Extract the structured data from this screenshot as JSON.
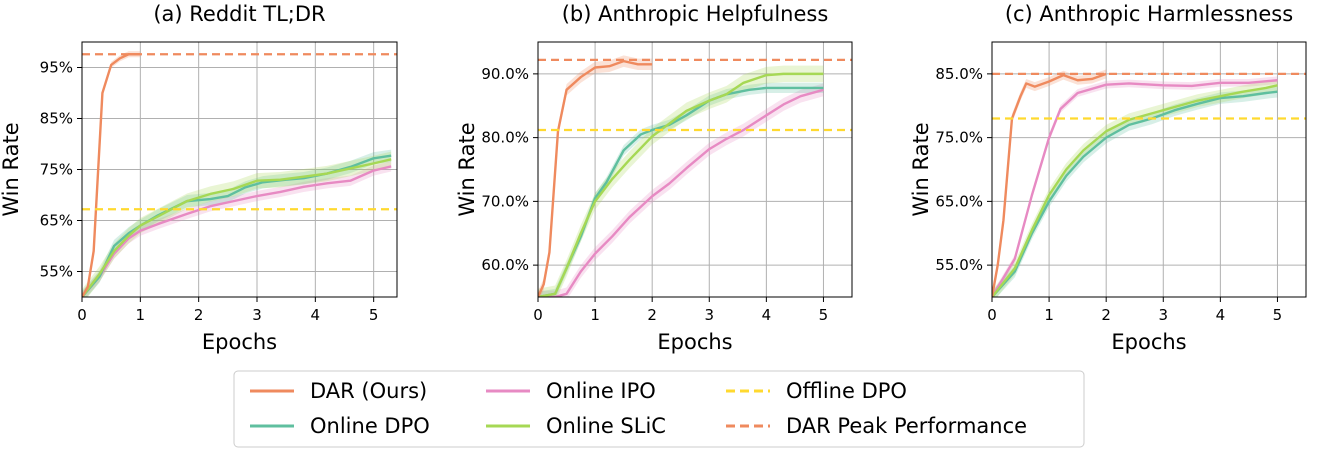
{
  "chart_data": [
    {
      "type": "line",
      "title": "(a) Reddit TL;DR",
      "xlabel": "Epochs",
      "ylabel": "Win Rate",
      "xlim": [
        0,
        5.4
      ],
      "ylim": [
        50,
        100
      ],
      "xticks": [
        0,
        1,
        2,
        3,
        4,
        5
      ],
      "xtick_labels": [
        "0",
        "1",
        "2",
        "3",
        "4",
        "5"
      ],
      "yticks": [
        55,
        65,
        75,
        85,
        95
      ],
      "ytick_labels": [
        "55%",
        "65%",
        "75%",
        "85%",
        "95%"
      ],
      "grid": true,
      "series": [
        {
          "name": "DAR (Ours)",
          "x": [
            0,
            0.1,
            0.2,
            0.35,
            0.5,
            0.65,
            0.8,
            1.0
          ],
          "y": [
            50,
            52,
            59,
            90,
            95.5,
            96.8,
            97.6,
            97.6
          ],
          "band": 0.6
        },
        {
          "name": "Online DPO",
          "x": [
            0,
            0.3,
            0.55,
            0.8,
            1.0,
            1.3,
            1.8,
            2.2,
            2.5,
            2.8,
            3.1,
            3.5,
            3.8,
            4.2,
            4.6,
            5.0,
            5.3
          ],
          "y": [
            50,
            54,
            60,
            62.5,
            64,
            66,
            68.8,
            69.2,
            69.8,
            71.5,
            72.5,
            73,
            73.3,
            74.2,
            75.5,
            77.2,
            77.7
          ],
          "band": 1.2
        },
        {
          "name": "Online IPO",
          "x": [
            0,
            0.3,
            0.55,
            0.8,
            1.0,
            1.3,
            1.8,
            2.2,
            2.6,
            3.0,
            3.4,
            3.8,
            4.2,
            4.6,
            5.0,
            5.3
          ],
          "y": [
            50,
            54,
            58.5,
            61.5,
            63,
            64.3,
            66.3,
            67.8,
            68.8,
            69.8,
            70.6,
            71.6,
            72.3,
            72.8,
            74.8,
            75.6
          ],
          "band": 1.0
        },
        {
          "name": "Online SLiC",
          "x": [
            0,
            0.3,
            0.55,
            0.8,
            1.0,
            1.3,
            1.8,
            2.2,
            2.6,
            3.0,
            3.4,
            3.8,
            4.2,
            4.6,
            5.0,
            5.3
          ],
          "y": [
            50,
            54.5,
            59,
            62,
            64,
            65.8,
            68.8,
            70.2,
            71.2,
            72.8,
            73,
            73.6,
            74.2,
            75.2,
            76.2,
            77
          ],
          "band": 1.5
        },
        {
          "name": "Offline DPO",
          "hline": 67.2
        },
        {
          "name": "DAR Peak Performance",
          "hline": 97.6
        }
      ]
    },
    {
      "type": "line",
      "title": "(b) Anthropic Helpfulness",
      "xlabel": "Epochs",
      "ylabel": "Win Rate",
      "xlim": [
        0,
        5.5
      ],
      "ylim": [
        55,
        95
      ],
      "xticks": [
        0,
        1,
        2,
        3,
        4,
        5
      ],
      "xtick_labels": [
        "0",
        "1",
        "2",
        "3",
        "4",
        "5"
      ],
      "yticks": [
        60,
        70,
        80,
        90
      ],
      "ytick_labels": [
        "60.0%",
        "70.0%",
        "80.0%",
        "90.0%"
      ],
      "grid": true,
      "series": [
        {
          "name": "DAR (Ours)",
          "x": [
            0,
            0.1,
            0.2,
            0.35,
            0.5,
            0.75,
            1.0,
            1.25,
            1.5,
            1.75,
            2.0
          ],
          "y": [
            55,
            57,
            62,
            81,
            87.5,
            89.5,
            91,
            91.2,
            92,
            91.5,
            91.5
          ],
          "band": 0.9
        },
        {
          "name": "Online DPO",
          "x": [
            0,
            0.3,
            0.5,
            0.75,
            1.0,
            1.2,
            1.5,
            1.8,
            2.0,
            2.3,
            2.6,
            3.0,
            3.3,
            3.7,
            4.0,
            4.4,
            4.7,
            5.0
          ],
          "y": [
            55,
            55.5,
            59.5,
            64.5,
            70.5,
            73,
            78,
            80.5,
            81.2,
            82,
            83.5,
            85.8,
            86.8,
            87.5,
            87.8,
            87.8,
            87.8,
            87.8
          ],
          "band": 0.8
        },
        {
          "name": "Online IPO",
          "x": [
            0,
            0.3,
            0.5,
            0.75,
            1.0,
            1.3,
            1.6,
            2.0,
            2.3,
            2.6,
            3.0,
            3.3,
            3.6,
            4.0,
            4.3,
            4.6,
            5.0
          ],
          "y": [
            55,
            55,
            55.5,
            59,
            61.8,
            64.5,
            67.5,
            70.8,
            72.8,
            75.2,
            78.2,
            79.8,
            81.2,
            83.5,
            85.2,
            86.5,
            87.5
          ],
          "band": 1.0
        },
        {
          "name": "Online SLiC",
          "x": [
            0,
            0.3,
            0.5,
            0.75,
            1.0,
            1.3,
            1.6,
            2.0,
            2.3,
            2.6,
            3.0,
            3.3,
            3.6,
            4.0,
            4.3,
            4.6,
            5.0
          ],
          "y": [
            55,
            55.5,
            59.5,
            65,
            70,
            73.5,
            76.5,
            80.2,
            82.2,
            84.2,
            85.8,
            86.8,
            88.6,
            89.8,
            90,
            90,
            90
          ],
          "band": 1.3
        },
        {
          "name": "Offline DPO",
          "hline": 81.2
        },
        {
          "name": "DAR Peak Performance",
          "hline": 92.2
        }
      ]
    },
    {
      "type": "line",
      "title": "(c) Anthropic Harmlessness",
      "xlabel": "Epochs",
      "ylabel": "Win Rate",
      "xlim": [
        0,
        5.5
      ],
      "ylim": [
        50,
        90
      ],
      "xticks": [
        0,
        1,
        2,
        3,
        4,
        5
      ],
      "xtick_labels": [
        "0",
        "1",
        "2",
        "3",
        "4",
        "5"
      ],
      "yticks": [
        55,
        65,
        75,
        85
      ],
      "ytick_labels": [
        "55.0%",
        "65.0%",
        "75.0%",
        "85.0%"
      ],
      "grid": true,
      "series": [
        {
          "name": "DAR (Ours)",
          "x": [
            0,
            0.1,
            0.2,
            0.35,
            0.5,
            0.6,
            0.75,
            1.0,
            1.25,
            1.5,
            1.75,
            2.0
          ],
          "y": [
            50,
            55,
            62,
            78,
            81.5,
            83.5,
            83,
            83.8,
            84.8,
            84,
            84.2,
            85
          ],
          "band": 0.7
        },
        {
          "name": "Online DPO",
          "x": [
            0,
            0.4,
            0.7,
            1.0,
            1.3,
            1.6,
            2.0,
            2.4,
            2.8,
            3.2,
            3.6,
            4.0,
            4.4,
            4.8,
            5.0
          ],
          "y": [
            50,
            54,
            60,
            65,
            69,
            72,
            75,
            77,
            78,
            79.3,
            80.3,
            81.2,
            81.5,
            82,
            82.2
          ],
          "band": 0.9
        },
        {
          "name": "Online IPO",
          "x": [
            0,
            0.2,
            0.4,
            0.7,
            1.0,
            1.2,
            1.5,
            2.0,
            2.4,
            3.0,
            3.5,
            4.0,
            4.5,
            5.0
          ],
          "y": [
            50,
            53,
            56,
            66,
            75,
            79.5,
            82,
            83.3,
            83.5,
            83.2,
            83.1,
            83.6,
            83.6,
            84
          ],
          "band": 0.6
        },
        {
          "name": "Online SLiC",
          "x": [
            0,
            0.4,
            0.7,
            1.0,
            1.3,
            1.6,
            2.0,
            2.4,
            2.8,
            3.2,
            3.6,
            4.0,
            4.4,
            4.8,
            5.0
          ],
          "y": [
            50,
            54.5,
            60.5,
            66,
            70,
            73,
            76,
            77.8,
            78.8,
            79.8,
            80.8,
            81.5,
            82.2,
            82.8,
            83.2
          ],
          "band": 1.0
        },
        {
          "name": "Offline DPO",
          "hline": 78
        },
        {
          "name": "DAR Peak Performance",
          "hline": 85
        }
      ]
    }
  ],
  "colors": {
    "DAR (Ours)": "#ef8a5e",
    "Online DPO": "#5fbf9f",
    "Online IPO": "#e78ac3",
    "Online SLiC": "#a6d854",
    "Offline DPO": "#ffd92f",
    "DAR Peak Performance": "#ef8a5e"
  },
  "legend": {
    "placement": "bottom-center",
    "entries": [
      {
        "label": "DAR (Ours)",
        "style": "solid"
      },
      {
        "label": "Online IPO",
        "style": "solid"
      },
      {
        "label": "Offline DPO",
        "style": "dashed"
      },
      {
        "label": "Online DPO",
        "style": "solid"
      },
      {
        "label": "Online SLiC",
        "style": "solid"
      },
      {
        "label": "DAR Peak Performance",
        "style": "dashed"
      }
    ]
  }
}
